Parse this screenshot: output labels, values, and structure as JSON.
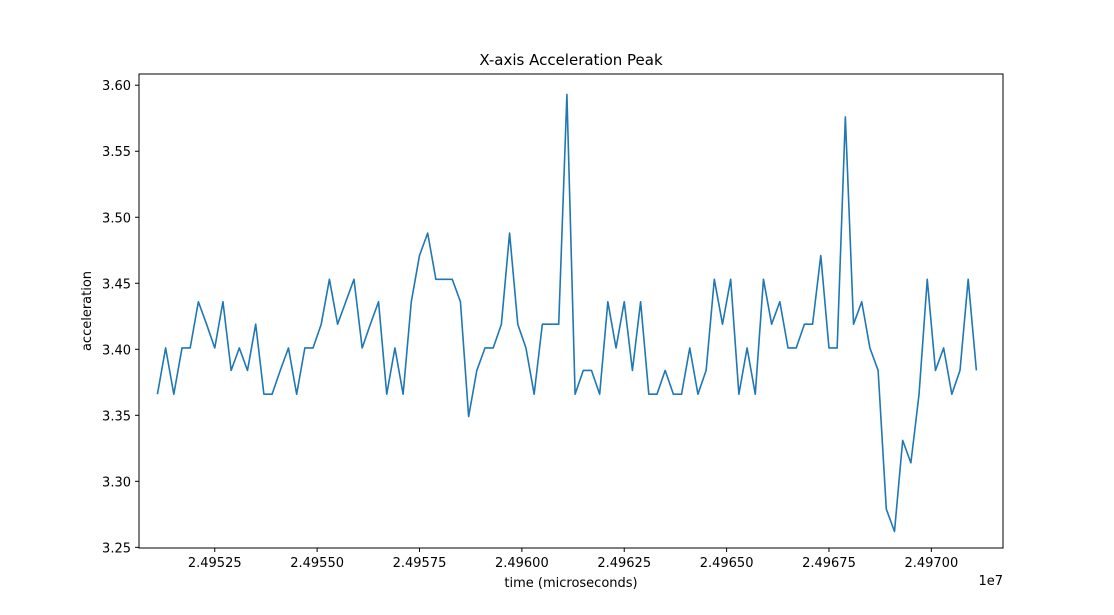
{
  "chart_data": {
    "type": "line",
    "title": "X-axis Acceleration Peak",
    "xlabel": "time (microseconds)",
    "ylabel": "acceleration",
    "x_offset_label": "1e7",
    "xlim": [
      2.495065,
      2.497175
    ],
    "ylim": [
      3.2495,
      3.6085
    ],
    "x_ticks": [
      {
        "value": 2.49525,
        "label": "2.49525"
      },
      {
        "value": 2.4955,
        "label": "2.49550"
      },
      {
        "value": 2.49575,
        "label": "2.49575"
      },
      {
        "value": 2.496,
        "label": "2.49600"
      },
      {
        "value": 2.49625,
        "label": "2.49625"
      },
      {
        "value": 2.4965,
        "label": "2.49650"
      },
      {
        "value": 2.49675,
        "label": "2.49675"
      },
      {
        "value": 2.497,
        "label": "2.49700"
      }
    ],
    "y_ticks": [
      {
        "value": 3.25,
        "label": "3.25"
      },
      {
        "value": 3.3,
        "label": "3.30"
      },
      {
        "value": 3.35,
        "label": "3.35"
      },
      {
        "value": 3.4,
        "label": "3.40"
      },
      {
        "value": 3.45,
        "label": "3.45"
      },
      {
        "value": 3.5,
        "label": "3.50"
      },
      {
        "value": 3.55,
        "label": "3.55"
      },
      {
        "value": 3.6,
        "label": "3.60"
      }
    ],
    "grid": false,
    "series": [
      {
        "color": "#1f77b4",
        "x": [
          2.49511,
          2.49513,
          2.49515,
          2.49517,
          2.49519,
          2.49521,
          2.49523,
          2.49525,
          2.49527,
          2.49529,
          2.49531,
          2.49533,
          2.49535,
          2.49537,
          2.49539,
          2.49541,
          2.49543,
          2.49545,
          2.49547,
          2.49549,
          2.49551,
          2.49553,
          2.49555,
          2.49557,
          2.49559,
          2.49561,
          2.49563,
          2.49565,
          2.49567,
          2.49569,
          2.49571,
          2.49573,
          2.49575,
          2.49577,
          2.49579,
          2.49581,
          2.49583,
          2.49585,
          2.49587,
          2.49589,
          2.49591,
          2.49593,
          2.49595,
          2.49597,
          2.49599,
          2.49601,
          2.49603,
          2.49605,
          2.49607,
          2.49609,
          2.49611,
          2.49613,
          2.49615,
          2.49617,
          2.49619,
          2.49621,
          2.49623,
          2.49625,
          2.49627,
          2.49629,
          2.49631,
          2.49633,
          2.49635,
          2.49637,
          2.49639,
          2.49641,
          2.49643,
          2.49645,
          2.49647,
          2.49649,
          2.49651,
          2.49653,
          2.49655,
          2.49657,
          2.49659,
          2.49661,
          2.49663,
          2.49665,
          2.49667,
          2.49669,
          2.49671,
          2.49673,
          2.49675,
          2.49677,
          2.49679,
          2.49681,
          2.49683,
          2.49685,
          2.49687,
          2.49689,
          2.49691,
          2.49693,
          2.49695,
          2.49697,
          2.49699,
          2.49701,
          2.49703,
          2.49705,
          2.49707,
          2.49709,
          2.49711
        ],
        "y": [
          3.366,
          3.401,
          3.366,
          3.401,
          3.401,
          3.436,
          3.419,
          3.401,
          3.436,
          3.384,
          3.401,
          3.384,
          3.419,
          3.366,
          3.366,
          3.384,
          3.401,
          3.366,
          3.401,
          3.401,
          3.419,
          3.453,
          3.419,
          3.436,
          3.453,
          3.401,
          3.419,
          3.436,
          3.366,
          3.401,
          3.366,
          3.436,
          3.471,
          3.488,
          3.453,
          3.453,
          3.453,
          3.436,
          3.349,
          3.384,
          3.401,
          3.401,
          3.419,
          3.488,
          3.419,
          3.401,
          3.366,
          3.419,
          3.419,
          3.419,
          3.593,
          3.366,
          3.384,
          3.384,
          3.366,
          3.436,
          3.401,
          3.436,
          3.384,
          3.436,
          3.366,
          3.366,
          3.384,
          3.366,
          3.366,
          3.401,
          3.366,
          3.384,
          3.453,
          3.419,
          3.453,
          3.366,
          3.401,
          3.366,
          3.453,
          3.419,
          3.436,
          3.401,
          3.401,
          3.419,
          3.419,
          3.471,
          3.401,
          3.401,
          3.576,
          3.419,
          3.436,
          3.401,
          3.384,
          3.279,
          3.262,
          3.331,
          3.314,
          3.366,
          3.453,
          3.384,
          3.401,
          3.366,
          3.384,
          3.453,
          3.384
        ]
      }
    ]
  }
}
